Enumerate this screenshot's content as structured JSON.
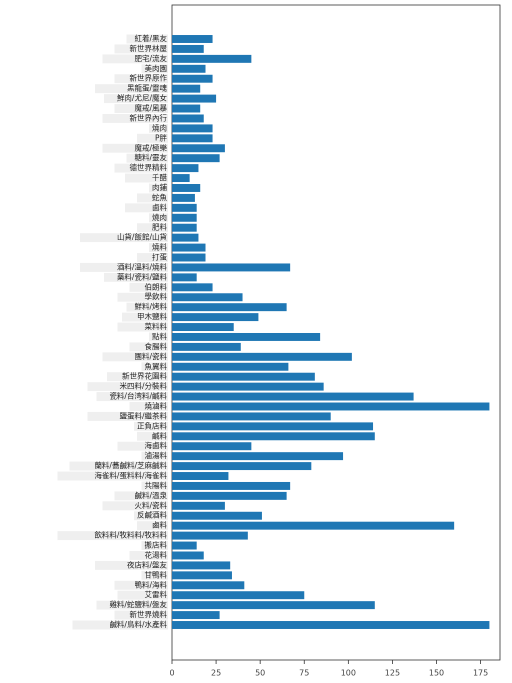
{
  "chart_data": {
    "type": "barh",
    "color": "#1f77b4",
    "categories": [
      "紅着/黑友",
      "新世界林屋",
      "肥宅/流友",
      "美肉園",
      "新世界原作",
      "黑龍蛋/靈魂",
      "鮮肉/尤尼/魔女",
      "魔戒/風暴",
      "新世界內行",
      "燒肉",
      "P胖",
      "魔戒/極樂",
      "糖料/靈友",
      "德世界精料",
      "千醋",
      "肉鋪",
      "蛇魚",
      "鹵料",
      "燒肉",
      "肥料",
      "山貨/飯館/山貨",
      "燒料",
      "打蛋",
      "酒料/溫料/燒料",
      "藥料/瓷料/鹽料",
      "伯朗料",
      "學飲料",
      "鮮料/烤料",
      "甲木鹽料",
      "菜料料",
      "點料",
      "食腸料",
      "團料/瓷料",
      "魚翼料",
      "新世界花園料",
      "米四料/分裝料",
      "瓷料/台湾料/鹹料",
      "燒滷料",
      "鹽蛋料/繼茶料",
      "正負店料",
      "鹹料",
      "海鹵料",
      "滷湯料",
      "蘭料/蕎鹹料/芝麻鹹料",
      "海雀料/蛋料料/海雀料",
      "共陽料",
      "鹹料/溫泉",
      "火料/瓷料",
      "反鹹酒料",
      "鹵料",
      "飲料料/牧料料/牧料料",
      "搬店料",
      "花湯料",
      "夜店料/盤友",
      "甘鴨料",
      "鴨料/海料",
      "艾雷料",
      "雞料/蛇鹽料/盤友",
      "新世界燒料",
      "鹹料/鳥料/水產料"
    ],
    "values": [
      23,
      18,
      45,
      19,
      23,
      16,
      25,
      16,
      18,
      23,
      23,
      30,
      27,
      15,
      10,
      16,
      13,
      14,
      14,
      14,
      15,
      19,
      19,
      67,
      14,
      23,
      40,
      65,
      49,
      35,
      84,
      39,
      102,
      66,
      81,
      86,
      137,
      180,
      90,
      114,
      115,
      45,
      97,
      79,
      32,
      67,
      65,
      30,
      51,
      160,
      43,
      14,
      18,
      33,
      34,
      41,
      75,
      115,
      27,
      180
    ],
    "xlim": [
      0,
      186
    ],
    "xticks": [
      0,
      25,
      50,
      75,
      100,
      125,
      150,
      175
    ]
  }
}
